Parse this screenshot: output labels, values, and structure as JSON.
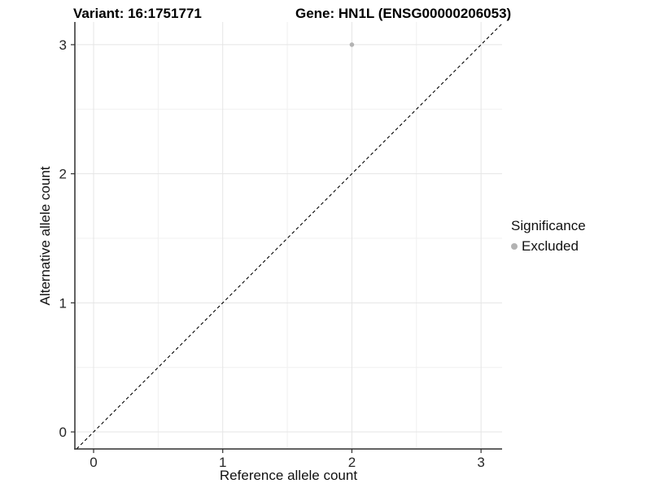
{
  "title": {
    "variant": "Variant: 16:1751771",
    "gene": "Gene: HN1L (ENSG00000206053)"
  },
  "axes": {
    "x": {
      "label": "Reference allele count",
      "tick_labels": [
        "0",
        "1",
        "2",
        "3"
      ]
    },
    "y": {
      "label": "Alternative allele count",
      "tick_labels": [
        "0",
        "1",
        "2",
        "3"
      ]
    }
  },
  "legend": {
    "title": "Significance",
    "items": [
      {
        "label": "Excluded",
        "color": "#b3b3b3",
        "marker": "circle-icon"
      }
    ]
  },
  "chart_data": {
    "type": "scatter",
    "title_left": "Variant: 16:1751771",
    "title_right": "Gene: HN1L (ENSG00000206053)",
    "xlabel": "Reference allele count",
    "ylabel": "Alternative allele count",
    "xlim": [
      -0.145,
      3.163
    ],
    "ylim": [
      -0.132,
      3.176
    ],
    "x_ticks": [
      0,
      1,
      2,
      3
    ],
    "y_ticks": [
      0,
      1,
      2,
      3
    ],
    "x_tick_labels": [
      "0",
      "1",
      "2",
      "3"
    ],
    "y_tick_labels": [
      "0",
      "1",
      "2",
      "3"
    ],
    "grid_minor_x": [
      0.5,
      1.5,
      2.5
    ],
    "grid_minor_y": [
      0.5,
      1.5,
      2.5
    ],
    "grid": "major and minor gridlines every 0.5",
    "legend_position": "right-center",
    "series": [
      {
        "name": "Excluded",
        "color": "#b3b3b3",
        "marker_radius": 2.8,
        "points": [
          [
            2,
            3
          ]
        ]
      }
    ],
    "reference_line": {
      "equation": "y = x",
      "style": "dashed",
      "color": "#000000"
    }
  },
  "colors": {
    "background": "#ffffff",
    "grid_major": "#e5e5e5",
    "grid_minor": "#f0f0f0",
    "axis_line": "#2f2f2f",
    "tick_text": "#262626",
    "title_text": "#000000",
    "point": "#b3b3b3"
  }
}
